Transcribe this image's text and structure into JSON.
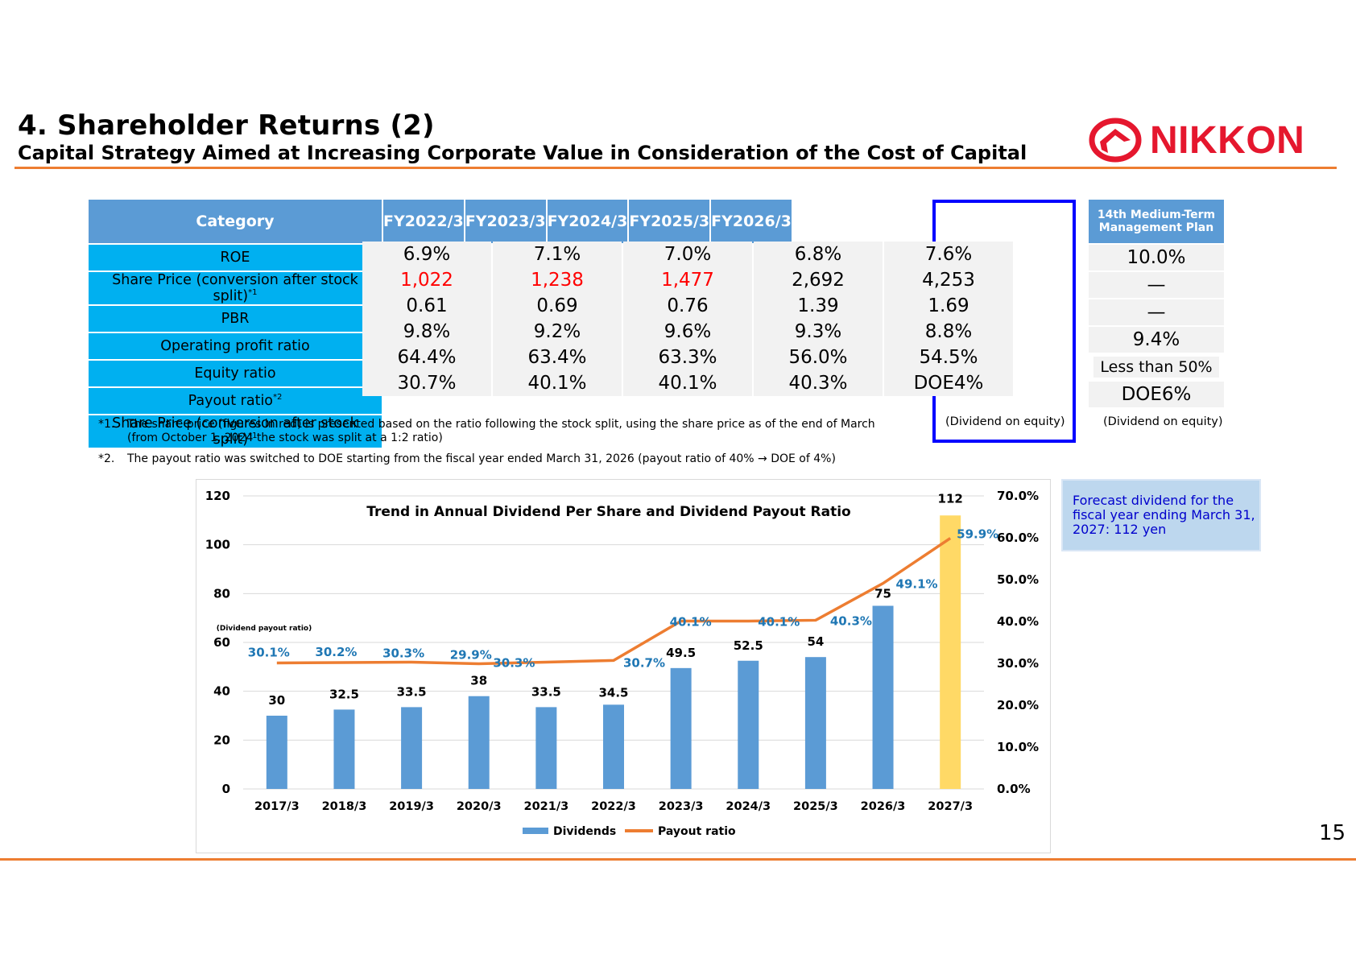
{
  "header": {
    "title": "4. Shareholder Returns (2)",
    "subtitle": "Capital Strategy Aimed at Increasing Corporate Value in Consideration of the Cost of Capital",
    "logo_text": "NIKKON",
    "page_number": "15"
  },
  "colors": {
    "accent_orange": "#ed7d31",
    "header_blue": "#5b9bd5",
    "category_cyan": "#00b0f0",
    "highlight_blue": "#0000ff",
    "logo_red": "#e5172e",
    "forecast_bar": "#ffd966"
  },
  "table": {
    "category_header": "Category",
    "years": [
      "FY2022/3",
      "FY2023/3",
      "FY2024/3",
      "FY2025/3",
      "FY2026/3"
    ],
    "rows": [
      {
        "label": "ROE",
        "sup": "",
        "values": [
          "6.9%",
          "7.1%",
          "7.0%",
          "6.8%",
          "7.6%"
        ],
        "red": [
          false,
          false,
          false,
          false,
          false
        ]
      },
      {
        "label": "Share Price (conversion after stock split)",
        "sup": "*1",
        "values": [
          "1,022",
          "1,238",
          "1,477",
          "2,692",
          "4,253"
        ],
        "red": [
          true,
          true,
          true,
          false,
          false
        ]
      },
      {
        "label": "PBR",
        "sup": "",
        "values": [
          "0.61",
          "0.69",
          "0.76",
          "1.39",
          "1.69"
        ],
        "red": [
          false,
          false,
          false,
          false,
          false
        ]
      },
      {
        "label": "Operating profit ratio",
        "sup": "",
        "values": [
          "9.8%",
          "9.2%",
          "9.6%",
          "9.3%",
          "8.8%"
        ],
        "red": [
          false,
          false,
          false,
          false,
          false
        ]
      },
      {
        "label": "Equity ratio",
        "sup": "",
        "values": [
          "64.4%",
          "63.4%",
          "63.3%",
          "56.0%",
          "54.5%"
        ],
        "red": [
          false,
          false,
          false,
          false,
          false
        ]
      },
      {
        "label": "Payout ratio",
        "sup": "*2",
        "values": [
          "30.7%",
          "40.1%",
          "40.1%",
          "40.3%",
          "DOE4%"
        ],
        "red": [
          false,
          false,
          false,
          false,
          false
        ]
      },
      {
        "label": "Share Price (conversion after stock split)",
        "sup": "*1",
        "values": [],
        "red": []
      }
    ],
    "plan_header": "14th Medium-Term Management Plan",
    "plan_values": [
      "10.0%",
      "—",
      "—",
      "9.4%",
      "Less than 50%",
      "DOE6%"
    ],
    "doe_note": "(Dividend on equity)"
  },
  "notes": [
    {
      "label": "*1.",
      "text": "The share price (figures in red) is presented based on the ratio following the stock split, using the share price as of the end of March",
      "text2": "(from October 1, 2024 the stock was split at a 1:2 ratio)"
    },
    {
      "label": "*2.",
      "text": "The payout ratio was switched to DOE starting from the fiscal year ended March 31, 2026 (payout ratio of 40% → DOE of 4%)",
      "text2": ""
    }
  ],
  "forecast_note": "Forecast dividend for the fiscal year ending March 31, 2027: 112 yen",
  "chart_data": {
    "type": "bar",
    "title": "Trend in Annual Dividend Per Share and Dividend Payout Ratio",
    "categories": [
      "2017/3",
      "2018/3",
      "2019/3",
      "2020/3",
      "2021/3",
      "2022/3",
      "2023/3",
      "2024/3",
      "2025/3",
      "2026/3",
      "2027/3"
    ],
    "series": [
      {
        "name": "Dividends",
        "type": "bar",
        "axis": "left",
        "values": [
          30,
          32.5,
          33.5,
          38,
          33.5,
          34.5,
          49.5,
          52.5,
          54,
          75,
          112
        ],
        "labels": [
          "30",
          "32.5",
          "33.5",
          "38",
          "33.5",
          "34.5",
          "49.5",
          "52.5",
          "54",
          "75",
          "112"
        ],
        "color": "#5b9bd5",
        "highlight_last_color": "#ffd966"
      },
      {
        "name": "Payout ratio",
        "type": "line",
        "axis": "right",
        "values": [
          30.1,
          30.2,
          30.3,
          29.9,
          30.3,
          30.7,
          40.1,
          40.1,
          40.3,
          49.1,
          59.9
        ],
        "labels": [
          "30.1%",
          "30.2%",
          "30.3%",
          "29.9%",
          "30.3%",
          "30.7%",
          "40.1%",
          "40.1%",
          "40.3%",
          "49.1%",
          "59.9%"
        ],
        "color": "#ed7d31"
      }
    ],
    "ylim": [
      0,
      120
    ],
    "yticks": [
      "0",
      "20",
      "40",
      "60",
      "80",
      "100",
      "120"
    ],
    "y2lim": [
      0,
      70
    ],
    "y2ticks": [
      "0.0%",
      "10.0%",
      "20.0%",
      "30.0%",
      "40.0%",
      "50.0%",
      "60.0%",
      "70.0%"
    ],
    "y2label": "(Dividend payout ratio)",
    "grid": true,
    "legend": "bottom"
  }
}
